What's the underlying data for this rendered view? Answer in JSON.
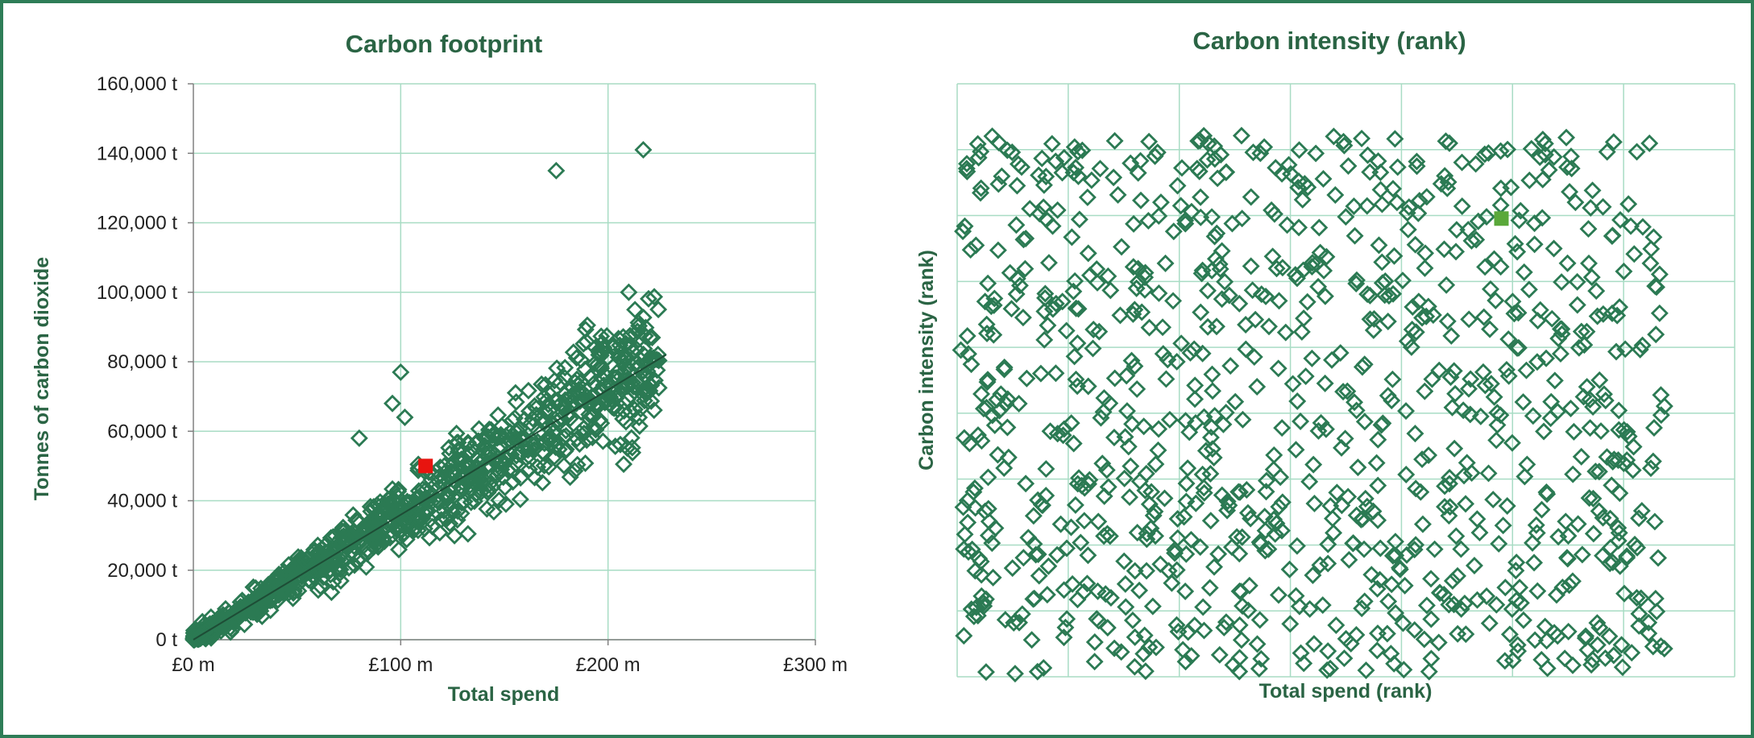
{
  "colors": {
    "border": "#2e7d57",
    "grid": "#a8dcc4",
    "axis": "#808080",
    "marker": "#2b7a53",
    "trend": "#1e4d36",
    "highlight_left": "#e8140f",
    "highlight_right": "#5aa83a",
    "text": "#2a6444"
  },
  "chart_data": [
    {
      "type": "scatter",
      "title": "Carbon footprint",
      "xlabel": "Total spend",
      "ylabel": "Tonnes of carbon dioxide",
      "xlim": [
        0,
        300
      ],
      "ylim": [
        0,
        160000
      ],
      "x_ticks": [
        0,
        100,
        200,
        300
      ],
      "x_tick_labels": [
        "£0 m",
        "£100 m",
        "£200 m",
        "£300 m"
      ],
      "y_ticks": [
        0,
        20000,
        40000,
        60000,
        80000,
        100000,
        120000,
        140000,
        160000
      ],
      "y_tick_labels": [
        "0 t",
        "20,000 t",
        "40,000 t",
        "60,000 t",
        "80,000 t",
        "100,000 t",
        "120,000 t",
        "140,000 t",
        "160,000 t"
      ],
      "grid": true,
      "marker": "hollow-diamond",
      "series_description": "about 1,000 organisations; emissions roughly proportional to spend (~370 t per £m), spend from £0 m to about £225 m",
      "trendline": {
        "x": [
          0,
          228
        ],
        "y": [
          0,
          82000
        ]
      },
      "outliers": [
        {
          "x": 175,
          "y": 135000
        },
        {
          "x": 217,
          "y": 141000
        },
        {
          "x": 210,
          "y": 100000
        },
        {
          "x": 213,
          "y": 95000
        },
        {
          "x": 100,
          "y": 77000
        },
        {
          "x": 96,
          "y": 68000
        },
        {
          "x": 102,
          "y": 64000
        },
        {
          "x": 80,
          "y": 58000
        }
      ],
      "highlight": {
        "x": 112,
        "y": 50000,
        "marker": "filled-square"
      }
    },
    {
      "type": "scatter",
      "title": "Carbon intensity (rank)",
      "xlabel": "Total spend (rank)",
      "ylabel": "Carbon intensity (rank)",
      "xlim": [
        0,
        1100
      ],
      "ylim": [
        0,
        1100
      ],
      "grid": true,
      "tick_labels_shown": false,
      "marker": "hollow-diamond",
      "series_description": "about 1,000 organisations ranked on both axes, spread uniformly with no correlation",
      "highlight": {
        "x": 770,
        "y": 850,
        "marker": "filled-square"
      }
    }
  ]
}
